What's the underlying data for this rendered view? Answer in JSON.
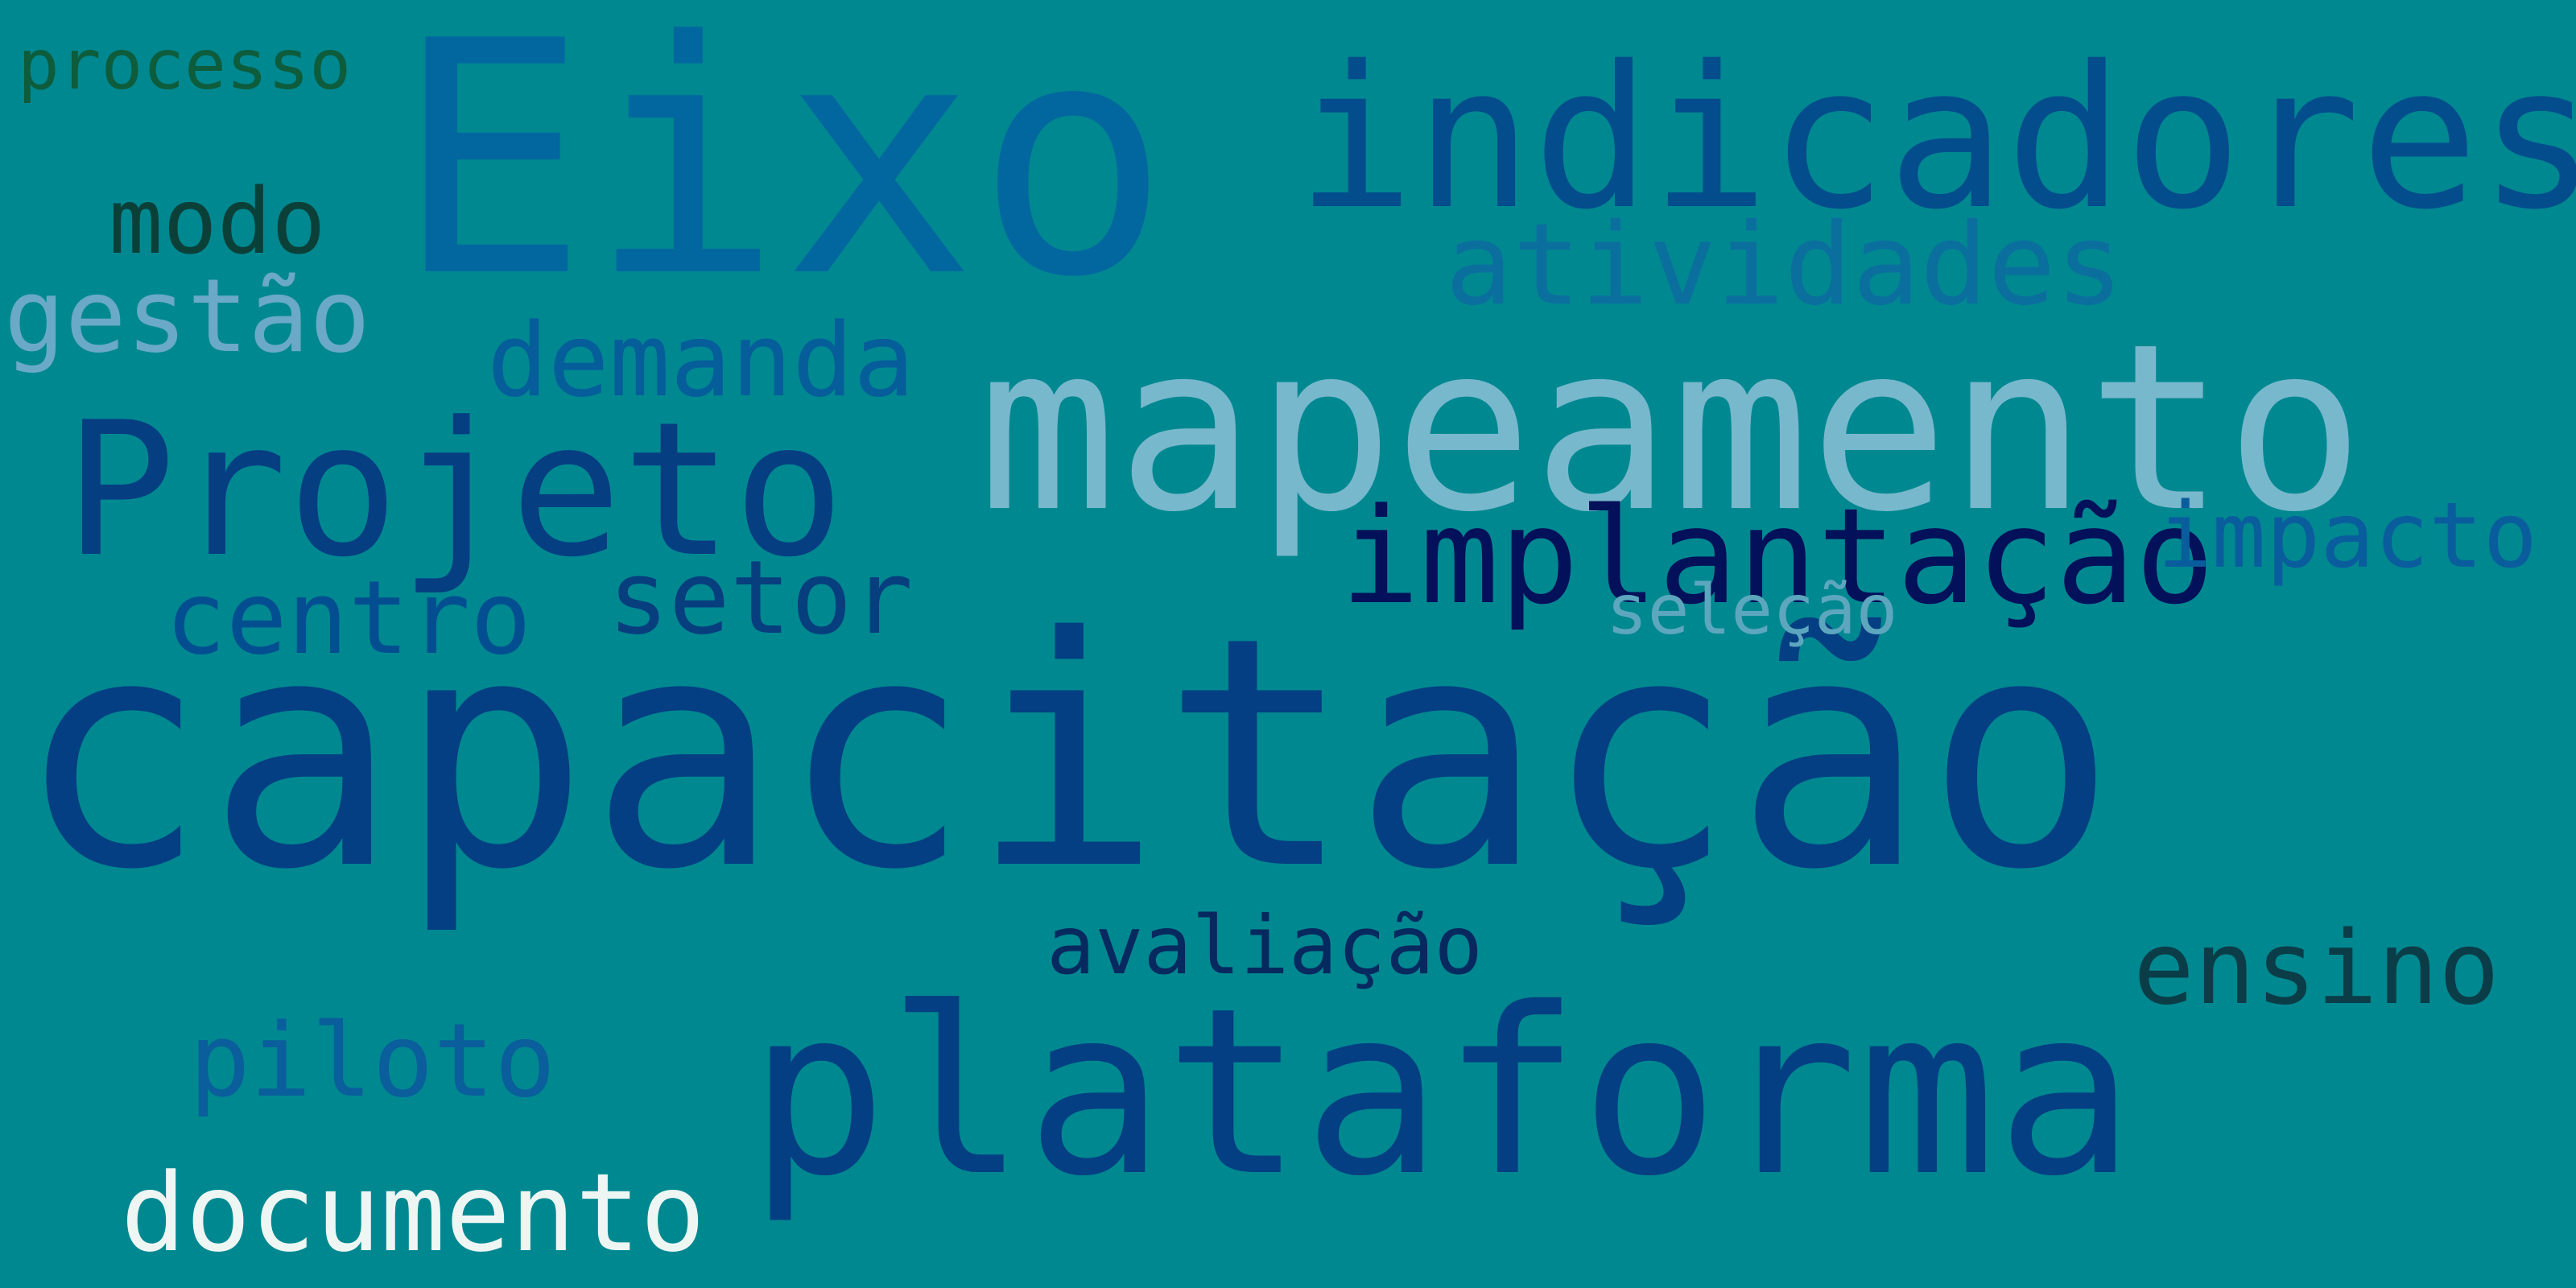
{
  "wordcloud": {
    "words": [
      {
        "key": "capacitacao",
        "text": "capacitação",
        "color": "#033f82"
      },
      {
        "key": "eixo",
        "text": "Eixo",
        "color": "#03679f"
      },
      {
        "key": "mapeamento",
        "text": "mapeamento",
        "color": "#78b8cc"
      },
      {
        "key": "plataforma",
        "text": "plataforma",
        "color": "#033f82"
      },
      {
        "key": "indicadores",
        "text": "indicadores",
        "color": "#034d8c"
      },
      {
        "key": "projeto",
        "text": "Projeto",
        "color": "#063e82"
      },
      {
        "key": "implantacao",
        "text": "implantação",
        "color": "#02115a"
      },
      {
        "key": "atividades",
        "text": "atividades",
        "color": "#0b6f9e"
      },
      {
        "key": "demanda",
        "text": "demanda",
        "color": "#055d9a"
      },
      {
        "key": "documento",
        "text": "documento",
        "color": "#eef6f4"
      },
      {
        "key": "ensino",
        "text": "ensino",
        "color": "#0a3d47"
      },
      {
        "key": "centro",
        "text": "centro",
        "color": "#034e90"
      },
      {
        "key": "setor",
        "text": "setor",
        "color": "#063e7e"
      },
      {
        "key": "impacto",
        "text": "impacto",
        "color": "#0a5d9c"
      },
      {
        "key": "avaliacao",
        "text": "avaliação",
        "color": "#06295f"
      },
      {
        "key": "piloto",
        "text": "piloto",
        "color": "#0a5e9b"
      },
      {
        "key": "gestao",
        "text": "gestão",
        "color": "#6aa9c7"
      },
      {
        "key": "modo",
        "text": "modo",
        "color": "#0b4039"
      },
      {
        "key": "processo",
        "text": "processo",
        "color": "#0d5c3c"
      },
      {
        "key": "selecao",
        "text": "seleção",
        "color": "#5da7be"
      }
    ]
  }
}
